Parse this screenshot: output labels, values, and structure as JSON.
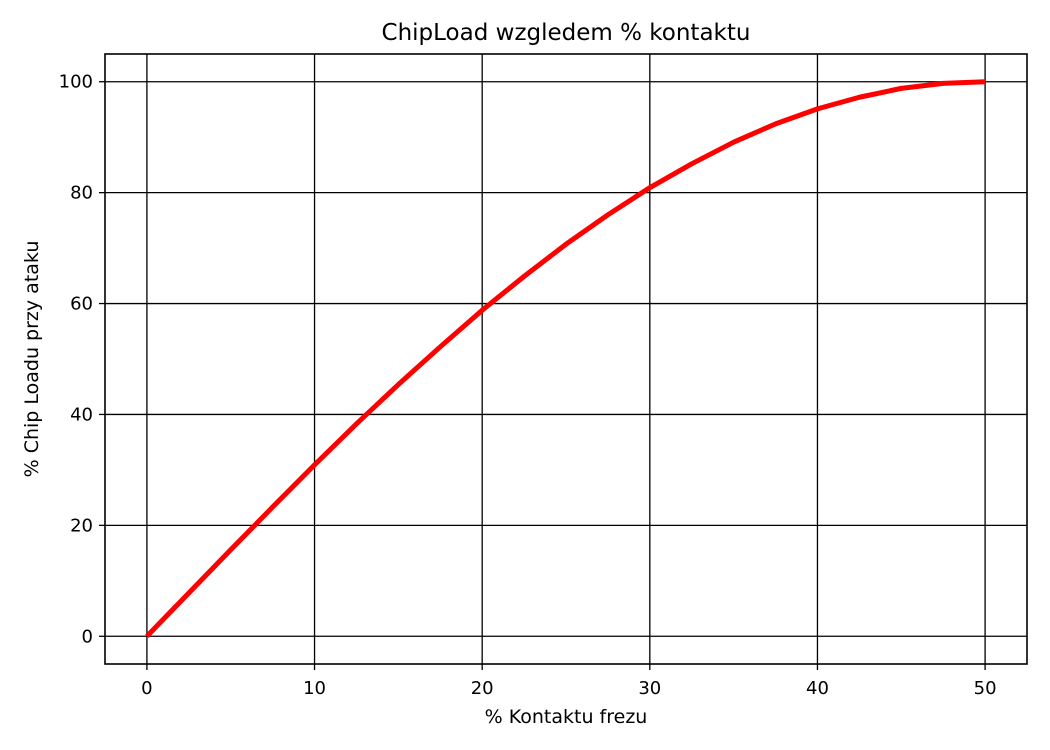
{
  "chart_data": {
    "type": "line",
    "title": "ChipLoad wzgledem % kontaktu",
    "xlabel": "% Kontaktu frezu",
    "ylabel": "% Chip Loadu przy ataku",
    "xlim": [
      -2.5,
      52.5
    ],
    "ylim": [
      -5,
      105
    ],
    "xticks": [
      0,
      10,
      20,
      30,
      40,
      50
    ],
    "yticks": [
      0,
      20,
      40,
      60,
      80,
      100
    ],
    "grid": true,
    "series": [
      {
        "color": "#ff0000",
        "x": [
          0,
          2.5,
          5,
          7.5,
          10,
          12.5,
          15,
          17.5,
          20,
          22.5,
          25,
          27.5,
          30,
          32.5,
          35,
          37.5,
          40,
          42.5,
          45,
          47.5,
          50
        ],
        "y": [
          0,
          7.8,
          15.6,
          23.3,
          30.9,
          38.3,
          45.4,
          52.2,
          58.8,
          64.9,
          70.7,
          76.0,
          80.9,
          85.2,
          89.1,
          92.4,
          95.1,
          97.2,
          98.8,
          99.7,
          100
        ]
      }
    ]
  }
}
